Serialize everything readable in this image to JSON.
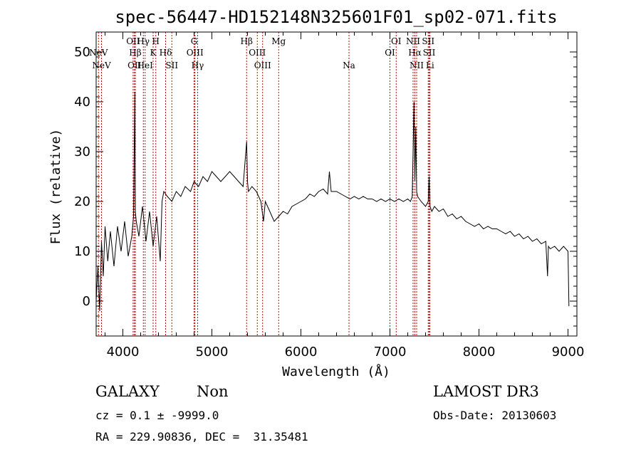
{
  "chart_data": {
    "type": "line",
    "title": "spec-56447-HD152148N325601F01_sp02-071.fits",
    "xlabel": "Wavelength (Å)",
    "ylabel": "Flux (relative)",
    "xlim": [
      3700,
      9100
    ],
    "ylim": [
      -7,
      54
    ],
    "x_ticks": [
      4000,
      5000,
      6000,
      7000,
      8000,
      9000
    ],
    "y_ticks": [
      0,
      10,
      20,
      30,
      40,
      50
    ],
    "series": [
      {
        "name": "",
        "color": "#000000",
        "x": [
          3700,
          3720,
          3740,
          3760,
          3780,
          3800,
          3830,
          3860,
          3900,
          3940,
          3980,
          4020,
          4060,
          4100,
          4120,
          4135,
          4140,
          4150,
          4180,
          4220,
          4260,
          4300,
          4340,
          4380,
          4420,
          4440,
          4460,
          4500,
          4550,
          4600,
          4650,
          4700,
          4760,
          4800,
          4850,
          4900,
          4950,
          5000,
          5050,
          5100,
          5150,
          5200,
          5250,
          5300,
          5350,
          5390,
          5400,
          5410,
          5450,
          5500,
          5550,
          5580,
          5600,
          5650,
          5700,
          5750,
          5800,
          5850,
          5900,
          5950,
          6000,
          6050,
          6100,
          6150,
          6200,
          6250,
          6300,
          6320,
          6340,
          6400,
          6450,
          6500,
          6550,
          6600,
          6650,
          6700,
          6750,
          6800,
          6850,
          6900,
          6950,
          7000,
          7050,
          7100,
          7150,
          7200,
          7230,
          7250,
          7270,
          7280,
          7290,
          7300,
          7310,
          7350,
          7400,
          7430,
          7440,
          7450,
          7470,
          7500,
          7550,
          7600,
          7650,
          7700,
          7750,
          7800,
          7850,
          7900,
          7950,
          8000,
          8050,
          8100,
          8150,
          8200,
          8250,
          8300,
          8350,
          8400,
          8450,
          8500,
          8550,
          8600,
          8650,
          8700,
          8750,
          8770,
          8780,
          8800,
          8850,
          8900,
          8950,
          9000,
          9010
        ],
        "y": [
          0,
          7,
          -2,
          12,
          5,
          15,
          8,
          14,
          7,
          15,
          10,
          16,
          9,
          13,
          17,
          42,
          18,
          16,
          13,
          19,
          12,
          18,
          11,
          17,
          8,
          20,
          22,
          21,
          20,
          22,
          21,
          23,
          22,
          24,
          23,
          25,
          24,
          26,
          25,
          24,
          25,
          26,
          25,
          24,
          23,
          32,
          24,
          22,
          23,
          22,
          20,
          16,
          20,
          18,
          16,
          17,
          18,
          17.5,
          19,
          19.5,
          20,
          20.5,
          21.5,
          21,
          22,
          22.5,
          21.5,
          26,
          22,
          22,
          21.5,
          21,
          20.5,
          21,
          20.5,
          21,
          20.5,
          20.5,
          20,
          20.5,
          20,
          20.5,
          20,
          20.5,
          20,
          20.5,
          20,
          21,
          40,
          24,
          35,
          22,
          21,
          20,
          19,
          20,
          25,
          19,
          18,
          19,
          18,
          18.5,
          17,
          17.5,
          16.5,
          17,
          16,
          15.5,
          15,
          15.5,
          14.5,
          15,
          14.5,
          14.5,
          14,
          13.5,
          14,
          13,
          13.5,
          12.5,
          13,
          12,
          12.5,
          11.5,
          12,
          5,
          11,
          10.5,
          11,
          10,
          11,
          10,
          -1
        ]
      }
    ],
    "lines": [
      {
        "x": 3726,
        "labels": [
          "NeV"
        ],
        "row": 1
      },
      {
        "x": 3760,
        "labels": [
          "NeV"
        ],
        "row": 2
      },
      {
        "x": 4115,
        "labels": [
          "OII"
        ],
        "row": 0
      },
      {
        "x": 4130,
        "labels": [
          "OII"
        ],
        "row": 2
      },
      {
        "x": 4140,
        "labels": [
          "Hβ"
        ],
        "row": 1
      },
      {
        "x": 4230,
        "labels": [
          "Hγ"
        ],
        "row": 0
      },
      {
        "x": 4250,
        "labels": [
          "HeI"
        ],
        "row": 2
      },
      {
        "x": 4340,
        "labels": [
          "K"
        ],
        "row": 1
      },
      {
        "x": 4370,
        "labels": [
          "H"
        ],
        "row": 0
      },
      {
        "x": 4480,
        "labels": [
          "Hδ"
        ],
        "row": 1
      },
      {
        "x": 4550,
        "labels": [
          "SII"
        ],
        "row": 2
      },
      {
        "x": 4800,
        "labels": [
          "G"
        ],
        "row": 0
      },
      {
        "x": 4810,
        "labels": [
          "OIII"
        ],
        "row": 1
      },
      {
        "x": 4840,
        "labels": [
          "Hγ"
        ],
        "row": 2
      },
      {
        "x": 5390,
        "labels": [
          "Hβ"
        ],
        "row": 0
      },
      {
        "x": 5510,
        "labels": [
          "OIII"
        ],
        "row": 1
      },
      {
        "x": 5570,
        "labels": [
          "OIII"
        ],
        "row": 2
      },
      {
        "x": 5750,
        "labels": [
          "Mg"
        ],
        "row": 0
      },
      {
        "x": 6540,
        "labels": [
          "Na"
        ],
        "row": 2
      },
      {
        "x": 7000,
        "labels": [
          "OI"
        ],
        "row": 1
      },
      {
        "x": 7070,
        "labels": [
          "OI"
        ],
        "row": 0
      },
      {
        "x": 7260,
        "labels": [
          "NII"
        ],
        "row": 0
      },
      {
        "x": 7280,
        "labels": [
          "Hα"
        ],
        "row": 1
      },
      {
        "x": 7300,
        "labels": [
          "NII"
        ],
        "row": 2
      },
      {
        "x": 7430,
        "labels": [
          "SII"
        ],
        "row": 0
      },
      {
        "x": 7440,
        "labels": [
          "SII"
        ],
        "row": 1
      },
      {
        "x": 7450,
        "labels": [
          "Li"
        ],
        "row": 2
      }
    ]
  },
  "info": {
    "class_label": "GALAXY",
    "subclass_label": "Non",
    "survey_label": "LAMOST DR3",
    "cz_line": "cz = 0.1 ± -9999.0",
    "obs_date_line": "Obs-Date: 20130603",
    "radec_line": "RA = 229.90836, DEC =  31.35481"
  },
  "colors": {
    "spectrum": "#000000",
    "line_marker": "#cc0000",
    "axes": "#000000"
  }
}
